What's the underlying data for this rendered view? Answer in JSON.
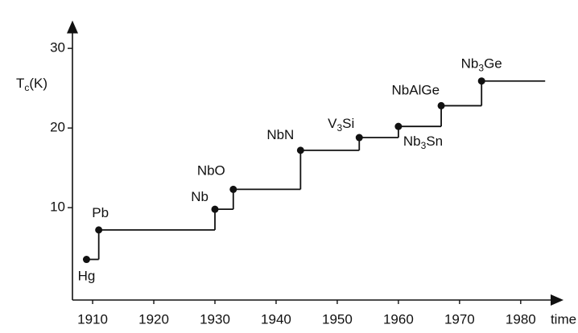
{
  "chart_data": {
    "type": "step",
    "ylabel": [
      {
        "text": "T"
      },
      {
        "text": "c",
        "sub": true
      },
      {
        "text": "(K)"
      }
    ],
    "xlabel": "time",
    "x": [
      1909,
      1911,
      1930,
      1933,
      1944,
      1953.6,
      1960,
      1967,
      1973.6,
      1984
    ],
    "values": [
      3.5,
      7.2,
      9.8,
      12.3,
      17.2,
      18.8,
      20.2,
      22.8,
      25.9,
      25.9
    ],
    "labels": [
      "Hg",
      "Pb",
      "Nb",
      "NbO",
      "NbN",
      "V3Si",
      "Nb3Sn",
      "NbAlGe",
      "Nb3Ge",
      null
    ],
    "color": "#111111",
    "xlim": [
      1906.7,
      1987
    ],
    "ylim": [
      -1.6,
      33.5
    ],
    "xticks": [
      1910,
      1920,
      1930,
      1940,
      1950,
      1960,
      1970,
      1980
    ],
    "yticks": [
      10,
      20,
      30
    ]
  }
}
